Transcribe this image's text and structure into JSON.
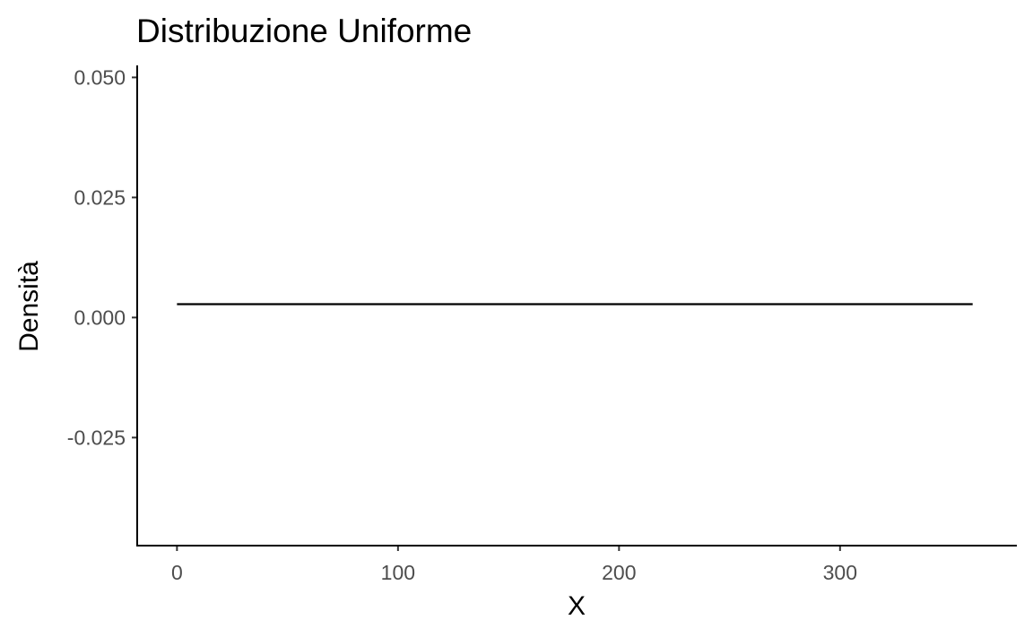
{
  "chart_data": {
    "type": "line",
    "title": "Distribuzione Uniforme",
    "xlabel": "X",
    "ylabel": "Densità",
    "xlim": [
      -18,
      380
    ],
    "ylim": [
      -0.0475,
      0.0525
    ],
    "x_ticks": [
      0,
      100,
      200,
      300
    ],
    "x_tick_labels": [
      "0",
      "100",
      "200",
      "300"
    ],
    "y_ticks": [
      0.05,
      0.025,
      0.0,
      -0.025
    ],
    "y_tick_labels": [
      "0.050",
      "0.025",
      "0.000",
      "-0.025"
    ],
    "grid": false,
    "legend": "none",
    "series": [
      {
        "x": [
          0,
          360
        ],
        "y": [
          0.002778,
          0.002778
        ],
        "color": "#000000"
      }
    ]
  }
}
